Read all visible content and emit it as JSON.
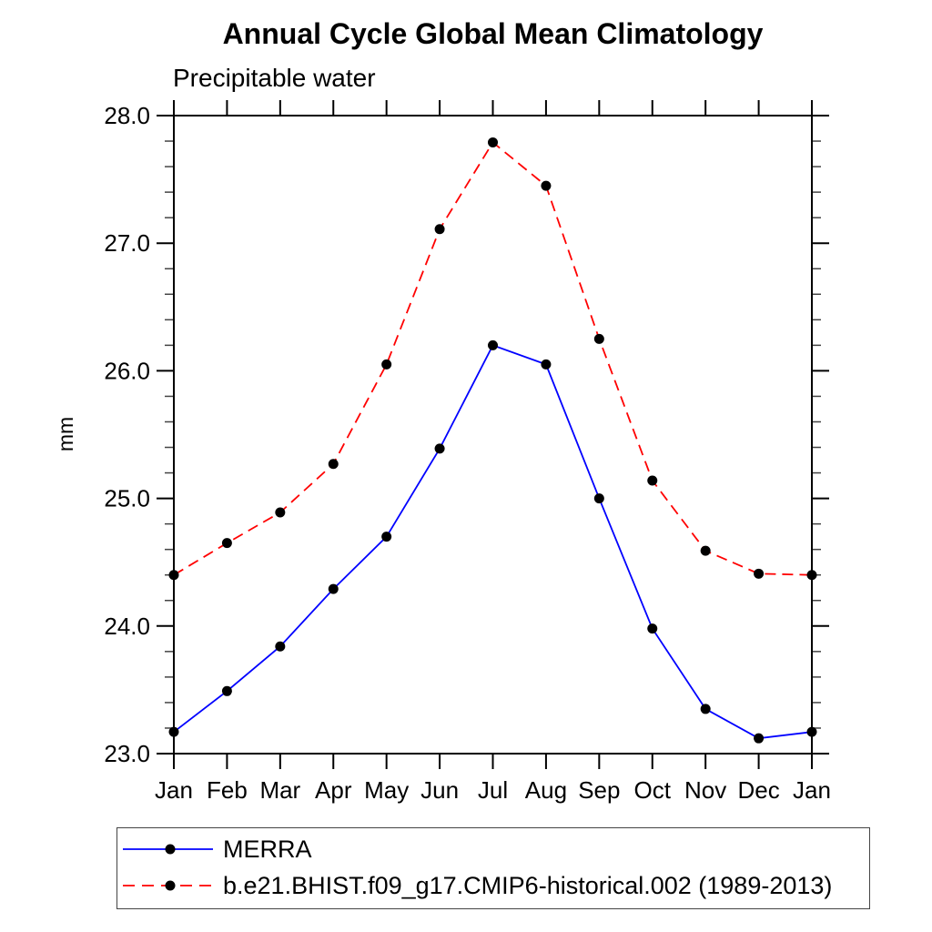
{
  "title": "Annual Cycle Global Mean Climatology",
  "subtitle": "Precipitable water",
  "y_axis_label": "mm",
  "colors": {
    "merra_line": "#0000ff",
    "model_line": "#ff0000",
    "marker": "#000000",
    "axis": "#000000",
    "minor_tick": "#444444",
    "background": "#ffffff"
  },
  "chart_data": {
    "type": "line",
    "title": "Annual Cycle Global Mean Climatology",
    "subtitle": "Precipitable water",
    "ylabel": "mm",
    "x_categories": [
      "Jan",
      "Feb",
      "Mar",
      "Apr",
      "May",
      "Jun",
      "Jul",
      "Aug",
      "Sep",
      "Oct",
      "Nov",
      "Dec",
      "Jan"
    ],
    "y_axis": {
      "min": 23.0,
      "max": 28.0,
      "major_tick_interval": 1.0,
      "minor_tick_interval": 0.2,
      "tick_labels": [
        "28.0",
        "27.0",
        "26.0",
        "25.0",
        "24.0",
        "23.0"
      ]
    },
    "grid": "off",
    "legend_position": "bottom-left",
    "series": [
      {
        "name": "MERRA",
        "color": "#0000ff",
        "line_style": "solid",
        "marker": "filled-circle",
        "marker_color": "#000000",
        "values": [
          23.17,
          23.49,
          23.84,
          24.29,
          24.7,
          25.39,
          26.2,
          26.05,
          25.0,
          23.98,
          23.35,
          23.12,
          23.17
        ]
      },
      {
        "name": "b.e21.BHIST.f09_g17.CMIP6-historical.002 (1989-2013)",
        "color": "#ff0000",
        "line_style": "dashed",
        "marker": "filled-circle",
        "marker_color": "#000000",
        "values": [
          24.4,
          24.65,
          24.89,
          25.27,
          26.05,
          27.11,
          27.79,
          27.45,
          26.25,
          25.14,
          24.59,
          24.41,
          24.4
        ]
      }
    ]
  }
}
